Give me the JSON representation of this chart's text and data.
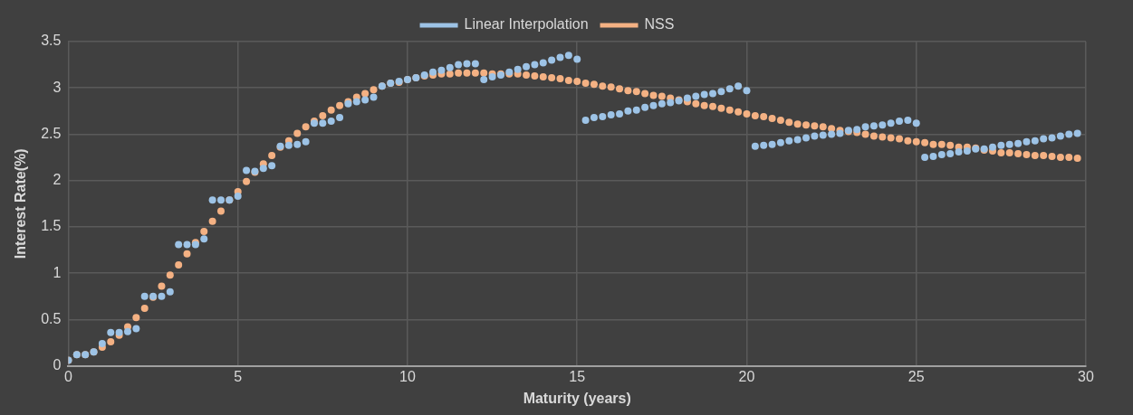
{
  "chart_data": {
    "type": "scatter",
    "xlabel": "Maturity (years)",
    "ylabel": "Interest Rate(%)",
    "x": [
      0,
      0.25,
      0.5,
      0.75,
      1,
      1.25,
      1.5,
      1.75,
      2,
      2.25,
      2.5,
      2.75,
      3,
      3.25,
      3.5,
      3.75,
      4,
      4.25,
      4.5,
      4.75,
      5,
      5.25,
      5.5,
      5.75,
      6,
      6.25,
      6.5,
      6.75,
      7,
      7.25,
      7.5,
      7.75,
      8,
      8.25,
      8.5,
      8.75,
      9,
      9.25,
      9.5,
      9.75,
      10,
      10.25,
      10.5,
      10.75,
      11,
      11.25,
      11.5,
      11.75,
      12,
      12.25,
      12.5,
      12.75,
      13,
      13.25,
      13.5,
      13.75,
      14,
      14.25,
      14.5,
      14.75,
      15,
      15.25,
      15.5,
      15.75,
      16,
      16.25,
      16.5,
      16.75,
      17,
      17.25,
      17.5,
      17.75,
      18,
      18.25,
      18.5,
      18.75,
      19,
      19.25,
      19.5,
      19.75,
      20,
      20.25,
      20.5,
      20.75,
      21,
      21.25,
      21.5,
      21.75,
      22,
      22.25,
      22.5,
      22.75,
      23,
      23.25,
      23.5,
      23.75,
      24,
      24.25,
      24.5,
      24.75,
      25,
      25.25,
      25.5,
      25.75,
      26,
      26.25,
      26.5,
      26.75,
      27,
      27.25,
      27.5,
      27.75,
      28,
      28.25,
      28.5,
      28.75,
      29,
      29.25,
      29.5,
      29.75
    ],
    "series": [
      {
        "name": "Linear Interpolation",
        "color": "#9dc3e6",
        "values": [
          0.06,
          0.12,
          0.12,
          0.15,
          0.24,
          0.36,
          0.36,
          0.37,
          0.4,
          0.75,
          0.75,
          0.75,
          0.8,
          1.31,
          1.31,
          1.31,
          1.37,
          1.79,
          1.79,
          1.79,
          1.83,
          2.11,
          2.1,
          2.13,
          2.16,
          2.37,
          2.38,
          2.39,
          2.42,
          2.62,
          2.62,
          2.64,
          2.68,
          2.83,
          2.85,
          2.87,
          2.9,
          3.02,
          3.05,
          3.07,
          3.09,
          3.11,
          3.14,
          3.17,
          3.19,
          3.22,
          3.25,
          3.26,
          3.26,
          3.09,
          3.12,
          3.14,
          3.17,
          3.2,
          3.23,
          3.25,
          3.27,
          3.3,
          3.33,
          3.35,
          3.31,
          2.65,
          2.68,
          2.69,
          2.71,
          2.72,
          2.75,
          2.76,
          2.79,
          2.81,
          2.83,
          2.84,
          2.86,
          2.89,
          2.91,
          2.93,
          2.94,
          2.96,
          2.99,
          3.02,
          2.97,
          2.37,
          2.38,
          2.39,
          2.41,
          2.43,
          2.44,
          2.46,
          2.48,
          2.49,
          2.5,
          2.51,
          2.54,
          2.55,
          2.58,
          2.59,
          2.6,
          2.62,
          2.64,
          2.65,
          2.62,
          2.25,
          2.26,
          2.28,
          2.29,
          2.31,
          2.32,
          2.34,
          2.34,
          2.36,
          2.38,
          2.39,
          2.4,
          2.42,
          2.43,
          2.45,
          2.46,
          2.48,
          2.5,
          2.51
        ]
      },
      {
        "name": "NSS",
        "color": "#f4b183",
        "values": [
          0.06,
          0.12,
          0.12,
          0.15,
          0.2,
          0.26,
          0.33,
          0.42,
          0.52,
          0.62,
          0.74,
          0.86,
          0.98,
          1.09,
          1.21,
          1.33,
          1.45,
          1.56,
          1.67,
          1.79,
          1.88,
          1.99,
          2.09,
          2.18,
          2.27,
          2.36,
          2.43,
          2.51,
          2.58,
          2.64,
          2.7,
          2.76,
          2.81,
          2.85,
          2.9,
          2.94,
          2.98,
          3.02,
          3.05,
          3.06,
          3.09,
          3.11,
          3.13,
          3.14,
          3.15,
          3.15,
          3.16,
          3.16,
          3.16,
          3.16,
          3.15,
          3.15,
          3.15,
          3.15,
          3.14,
          3.13,
          3.12,
          3.11,
          3.1,
          3.08,
          3.07,
          3.05,
          3.04,
          3.02,
          3.01,
          2.99,
          2.97,
          2.96,
          2.94,
          2.92,
          2.91,
          2.89,
          2.87,
          2.85,
          2.83,
          2.81,
          2.8,
          2.78,
          2.76,
          2.74,
          2.72,
          2.7,
          2.69,
          2.67,
          2.65,
          2.63,
          2.61,
          2.6,
          2.59,
          2.58,
          2.56,
          2.54,
          2.53,
          2.52,
          2.5,
          2.48,
          2.47,
          2.46,
          2.45,
          2.43,
          2.42,
          2.41,
          2.39,
          2.39,
          2.38,
          2.36,
          2.36,
          2.35,
          2.33,
          2.32,
          2.3,
          2.3,
          2.29,
          2.28,
          2.27,
          2.27,
          2.26,
          2.25,
          2.25,
          2.24
        ]
      }
    ],
    "xlim": [
      0,
      30
    ],
    "xticks": [
      0,
      5,
      10,
      15,
      20,
      25,
      30
    ],
    "ylim": [
      0,
      3.5
    ],
    "yticks": [
      0,
      0.5,
      1,
      1.5,
      2,
      2.5,
      3,
      3.5
    ],
    "grid": true,
    "legend": "top",
    "marker": "circle"
  }
}
